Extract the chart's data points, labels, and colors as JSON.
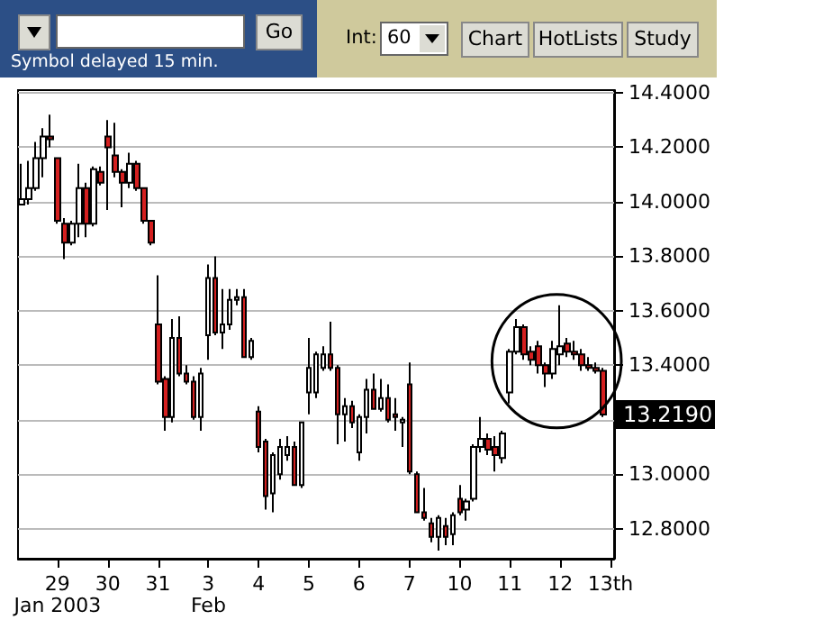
{
  "chart_data": {
    "type": "candlestick",
    "categories": [
      null,
      null,
      null,
      null,
      null,
      "29\nJan 2003",
      null,
      null,
      null,
      null,
      null,
      null,
      "30",
      null,
      null,
      null,
      null,
      null,
      null,
      "31",
      null,
      null,
      null,
      null,
      null,
      null,
      "3\nFeb",
      null,
      null,
      null,
      null,
      null,
      null,
      "4",
      null,
      null,
      null,
      null,
      null,
      null,
      "5",
      null,
      null,
      null,
      null,
      null,
      null,
      "6",
      null,
      null,
      null,
      null,
      null,
      null,
      "7",
      null,
      null,
      null,
      null,
      null,
      null,
      "10",
      null,
      null,
      null,
      null,
      null,
      null,
      "11",
      null,
      null,
      null,
      null,
      null,
      null,
      "12",
      null,
      null,
      null,
      null,
      null,
      null,
      "13th"
    ],
    "series": [
      {
        "colors": [
          "#ffffff",
          "#ffffff",
          "#ffffff",
          "#ffffff",
          "#d42020",
          "#d42020",
          "#d42020",
          "#ffffff",
          "#ffffff",
          "#d42020",
          "#ffffff",
          "#d42020",
          "#d42020",
          "#d42020",
          "#d42020",
          "#ffffff",
          "#d42020",
          "#d42020",
          "#d42020",
          "#d42020",
          "#d42020",
          "#ffffff",
          "#d42020",
          "#d42020",
          "#d42020",
          "#ffffff",
          "#ffffff",
          "#d42020",
          "#ffffff",
          "#ffffff",
          "#ffffff",
          "#d42020",
          "#ffffff",
          "#d42020",
          "#d42020",
          "#ffffff",
          "#ffffff",
          "#ffffff",
          "#d42020",
          "#ffffff",
          "#ffffff",
          "#ffffff",
          "#ffffff",
          "#d42020",
          "#d42020",
          "#ffffff",
          "#d42020",
          "#ffffff",
          "#ffffff",
          "#d42020",
          "#ffffff",
          "#d42020",
          "#d42020",
          "#ffffff",
          "#d42020",
          "#d42020",
          "#d42020",
          "#d42020",
          "#ffffff",
          "#d42020",
          "#ffffff",
          "#d42020",
          "#ffffff",
          "#ffffff",
          "#ffffff",
          "#d42020",
          "#d42020",
          "#ffffff",
          "#ffffff",
          "#ffffff",
          "#d42020",
          "#d42020",
          "#d42020",
          "#d42020",
          "#ffffff",
          "#ffffff",
          "#d42020",
          "#d42020",
          "#d42020",
          "#d42020",
          "#d42020",
          "#d42020",
          null
        ],
        "ohlc": [
          [
            13.99,
            14.14,
            13.99,
            14.01
          ],
          [
            14.01,
            14.15,
            13.99,
            14.05
          ],
          [
            14.05,
            14.22,
            14.04,
            14.16
          ],
          [
            14.16,
            14.27,
            14.09,
            14.24
          ],
          [
            14.24,
            14.32,
            14.2,
            14.23
          ],
          [
            14.16,
            14.16,
            13.92,
            13.93
          ],
          [
            13.92,
            13.94,
            13.79,
            13.85
          ],
          [
            13.85,
            13.93,
            13.84,
            13.92
          ],
          [
            13.92,
            14.14,
            13.87,
            14.05
          ],
          [
            14.05,
            14.07,
            13.87,
            13.92
          ],
          [
            13.92,
            14.13,
            13.91,
            14.12
          ],
          [
            14.11,
            14.13,
            14.06,
            14.07
          ],
          [
            14.24,
            14.3,
            13.97,
            14.2
          ],
          [
            14.17,
            14.29,
            14.09,
            14.11
          ],
          [
            14.11,
            14.12,
            13.98,
            14.07
          ],
          [
            14.07,
            14.18,
            14.05,
            14.14
          ],
          [
            14.14,
            14.15,
            14.04,
            14.05
          ],
          [
            14.05,
            14.05,
            13.92,
            13.93
          ],
          [
            13.93,
            13.93,
            13.84,
            13.85
          ],
          [
            13.55,
            13.73,
            13.33,
            13.34
          ],
          [
            13.35,
            13.36,
            13.16,
            13.21
          ],
          [
            13.21,
            13.57,
            13.19,
            13.5
          ],
          [
            13.5,
            13.58,
            13.36,
            13.37
          ],
          [
            13.37,
            13.4,
            13.33,
            13.34
          ],
          [
            13.34,
            13.36,
            13.2,
            13.21
          ],
          [
            13.21,
            13.39,
            13.16,
            13.37
          ],
          [
            13.51,
            13.77,
            13.42,
            13.72
          ],
          [
            13.72,
            13.8,
            13.51,
            13.52
          ],
          [
            13.52,
            13.68,
            13.46,
            13.55
          ],
          [
            13.55,
            13.68,
            13.53,
            13.64
          ],
          [
            13.64,
            13.68,
            13.62,
            13.65
          ],
          [
            13.65,
            13.68,
            13.43,
            13.43
          ],
          [
            13.43,
            13.5,
            13.42,
            13.49
          ],
          [
            13.23,
            13.25,
            13.08,
            13.1
          ],
          [
            13.12,
            13.13,
            12.87,
            12.92
          ],
          [
            12.93,
            13.08,
            12.86,
            13.07
          ],
          [
            13.0,
            13.13,
            12.98,
            13.1
          ],
          [
            13.07,
            13.14,
            13.05,
            13.1
          ],
          [
            13.1,
            13.12,
            12.96,
            12.96
          ],
          [
            12.96,
            13.19,
            12.95,
            13.19
          ],
          [
            13.3,
            13.5,
            13.22,
            13.39
          ],
          [
            13.3,
            13.45,
            13.28,
            13.44
          ],
          [
            13.39,
            13.47,
            13.38,
            13.44
          ],
          [
            13.44,
            13.56,
            13.38,
            13.39
          ],
          [
            13.39,
            13.4,
            13.11,
            13.22
          ],
          [
            13.22,
            13.28,
            13.12,
            13.25
          ],
          [
            13.25,
            13.27,
            13.17,
            13.19
          ],
          [
            13.08,
            13.22,
            13.05,
            13.21
          ],
          [
            13.21,
            13.35,
            13.15,
            13.31
          ],
          [
            13.31,
            13.37,
            13.24,
            13.24
          ],
          [
            13.24,
            13.35,
            13.23,
            13.28
          ],
          [
            13.28,
            13.33,
            13.19,
            13.2
          ],
          [
            13.22,
            13.28,
            13.16,
            13.21
          ],
          [
            13.19,
            13.21,
            13.1,
            13.2
          ],
          [
            13.33,
            13.41,
            13.0,
            13.01
          ],
          [
            13.0,
            13.01,
            12.86,
            12.86
          ],
          [
            12.86,
            12.95,
            12.83,
            12.84
          ],
          [
            12.82,
            12.84,
            12.75,
            12.77
          ],
          [
            12.77,
            12.85,
            12.72,
            12.84
          ],
          [
            12.81,
            12.84,
            12.74,
            12.77
          ],
          [
            12.78,
            12.86,
            12.74,
            12.85
          ],
          [
            12.91,
            12.96,
            12.85,
            12.86
          ],
          [
            12.87,
            12.91,
            12.83,
            12.9
          ],
          [
            12.91,
            13.11,
            12.9,
            13.1
          ],
          [
            13.1,
            13.21,
            13.08,
            13.13
          ],
          [
            13.13,
            13.15,
            13.07,
            13.09
          ],
          [
            13.1,
            13.14,
            13.01,
            13.07
          ],
          [
            13.06,
            13.16,
            13.04,
            13.15
          ],
          [
            13.3,
            13.46,
            13.26,
            13.45
          ],
          [
            13.45,
            13.57,
            13.44,
            13.54
          ],
          [
            13.54,
            13.55,
            13.42,
            13.44
          ],
          [
            13.45,
            13.47,
            13.4,
            13.42
          ],
          [
            13.47,
            13.49,
            13.37,
            13.4
          ],
          [
            13.4,
            13.41,
            13.32,
            13.37
          ],
          [
            13.37,
            13.49,
            13.35,
            13.46
          ],
          [
            13.44,
            13.62,
            13.4,
            13.47
          ],
          [
            13.48,
            13.5,
            13.43,
            13.45
          ],
          [
            13.45,
            13.49,
            13.42,
            13.44
          ],
          [
            13.44,
            13.46,
            13.38,
            13.4
          ],
          [
            13.4,
            13.43,
            13.38,
            13.39
          ],
          [
            13.39,
            13.41,
            13.37,
            13.38
          ],
          [
            13.38,
            13.39,
            13.21,
            13.219
          ],
          null
        ]
      }
    ],
    "ylim": [
      12.69,
      14.41
    ],
    "yticks": [
      {
        "value": 12.8,
        "label": "12.8000"
      },
      {
        "value": 13.0,
        "label": "13.0000"
      },
      {
        "value": 13.2,
        "label": null
      },
      {
        "value": 13.4,
        "label": "13.4000"
      },
      {
        "value": 13.6,
        "label": "13.6000"
      },
      {
        "value": 13.8,
        "label": "13.8000"
      },
      {
        "value": 14.0,
        "label": "14.0000"
      },
      {
        "value": 14.2,
        "label": "14.2000"
      },
      {
        "value": 14.4,
        "label": "14.4000"
      }
    ],
    "grid": "y",
    "annotations": [
      "Symbol delayed 15 min.",
      "Go",
      "Int:",
      "60",
      "Chart",
      "HotLists",
      "Study",
      "13.2190"
    ]
  }
}
